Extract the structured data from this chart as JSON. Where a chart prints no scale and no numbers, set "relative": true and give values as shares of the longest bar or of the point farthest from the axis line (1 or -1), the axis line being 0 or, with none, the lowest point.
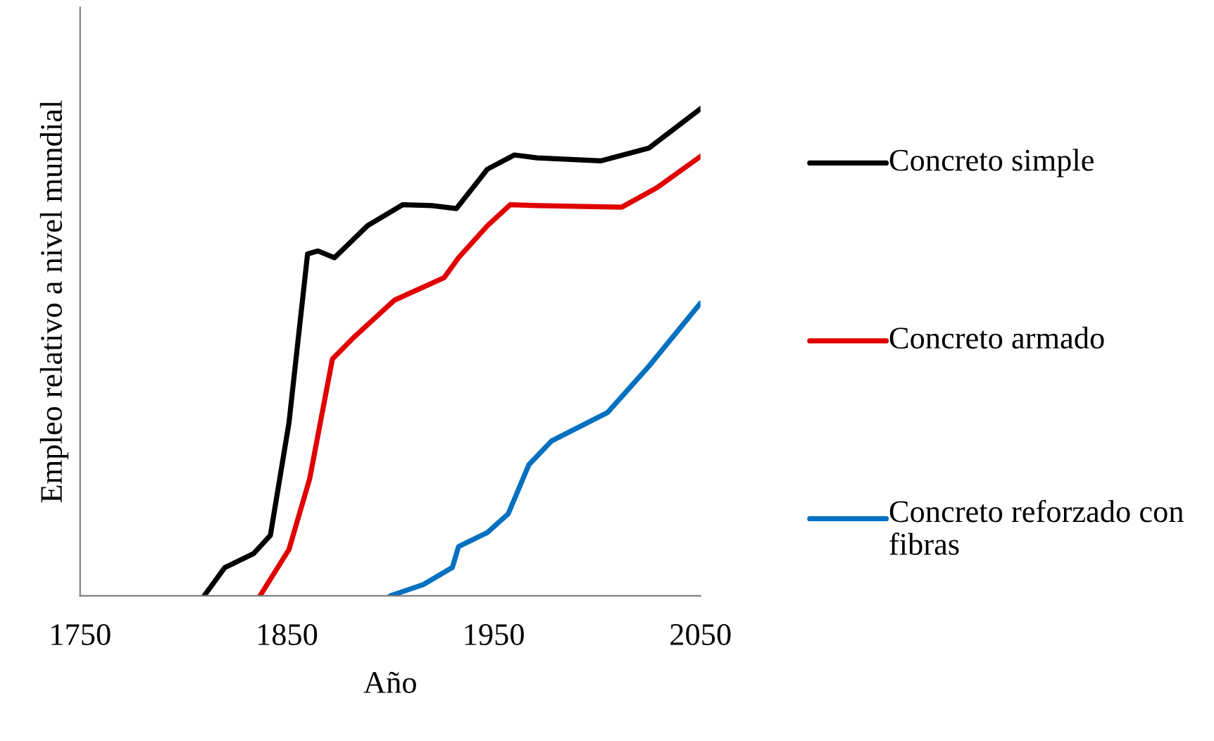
{
  "chart_data": {
    "type": "line",
    "relative": true,
    "xlabel": "Año",
    "ylabel": "Empleo relativo a nivel mundial",
    "xlim": [
      1750,
      2050
    ],
    "xticks": [
      1750,
      1850,
      1950,
      2050
    ],
    "tick_labels": "x",
    "grid": false,
    "legend": "right",
    "marker": "none",
    "line_style": "solid",
    "series": [
      {
        "name": "Concreto simple",
        "color": "#000000",
        "x": [
          1810,
          1820,
          1834,
          1842,
          1851,
          1860,
          1865,
          1873,
          1889,
          1906,
          1920,
          1932,
          1947,
          1960,
          1971,
          2002,
          2025,
          2050
        ],
        "values": [
          0,
          0.058,
          0.087,
          0.124,
          0.355,
          0.702,
          0.708,
          0.694,
          0.76,
          0.803,
          0.801,
          0.795,
          0.876,
          0.905,
          0.899,
          0.893,
          0.919,
          1.0
        ]
      },
      {
        "name": "Concreto armado",
        "color": "#e00000",
        "x": [
          1837,
          1851,
          1861,
          1872,
          1882,
          1902,
          1926,
          1933,
          1947,
          1958,
          1971,
          2012,
          2029,
          2050
        ],
        "values": [
          0,
          0.095,
          0.24,
          0.486,
          0.529,
          0.607,
          0.653,
          0.694,
          0.76,
          0.803,
          0.801,
          0.798,
          0.838,
          0.902
        ]
      },
      {
        "name": "Concreto reforzado con fibras",
        "color": "#0070c0",
        "x": [
          1900,
          1916,
          1930,
          1933,
          1947,
          1957,
          1967,
          1978,
          2005,
          2025,
          2050
        ],
        "values": [
          0,
          0.023,
          0.058,
          0.101,
          0.13,
          0.168,
          0.269,
          0.318,
          0.376,
          0.471,
          0.601
        ]
      }
    ]
  }
}
